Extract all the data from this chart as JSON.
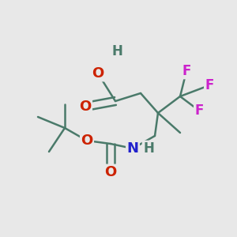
{
  "bg_color": "#e8e8e8",
  "bond_color": "#4a7a6a",
  "bond_width": 1.8,
  "atom_colors": {
    "C": "#4a7a6a",
    "O": "#cc2200",
    "H": "#4a7a6a",
    "N": "#2222cc",
    "F": "#cc22cc"
  },
  "figsize": [
    3.0,
    3.0
  ],
  "dpi": 100,
  "xlim": [
    0,
    300
  ],
  "ylim": [
    0,
    300
  ],
  "font_size": 13
}
